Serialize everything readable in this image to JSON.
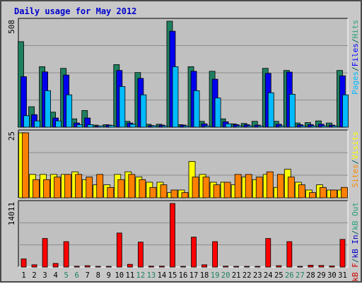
{
  "chart_data": {
    "title": "Daily usage for May 2012",
    "days": [
      "1",
      "2",
      "3",
      "4",
      "5",
      "6",
      "7",
      "8",
      "9",
      "10",
      "11",
      "12",
      "13",
      "14",
      "15",
      "16",
      "17",
      "18",
      "19",
      "20",
      "21",
      "22",
      "23",
      "24",
      "25",
      "26",
      "27",
      "28",
      "29",
      "30",
      "31"
    ],
    "weekend_days": [
      "5",
      "6",
      "12",
      "13",
      "19",
      "20",
      "26",
      "27"
    ],
    "panels": [
      {
        "type": "bar",
        "max_label": "508",
        "ymax": 508,
        "series_labels": [
          "Pages",
          "/",
          "Files",
          "/",
          "Hits"
        ],
        "series_label_colors": [
          "#00bbff",
          "#006060",
          "#0000ff",
          "#006060",
          "#2aa07a"
        ],
        "series": [
          {
            "name": "Hits",
            "color": "#1f8060",
            "values": [
              410,
              98,
              290,
              72,
              282,
              40,
              80,
              10,
              12,
              300,
              28,
              262,
              14,
              14,
              508,
              12,
              290,
              28,
              268,
              40,
              16,
              18,
              28,
              282,
              28,
              272,
              20,
              22,
              30,
              20,
              272
            ]
          },
          {
            "name": "Files",
            "color": "#0000ee",
            "values": [
              242,
              60,
              265,
              44,
              250,
              20,
              44,
              6,
              10,
              272,
              20,
              234,
              8,
              10,
              460,
              10,
              268,
              16,
              230,
              26,
              12,
              12,
              10,
              258,
              14,
              264,
              12,
              12,
              14,
              10,
              246
            ]
          },
          {
            "name": "Pages",
            "color": "#00bbff",
            "values": [
              55,
              30,
              175,
              30,
              155,
              12,
              12,
              6,
              8,
              195,
              14,
              155,
              6,
              6,
              290,
              6,
              175,
              6,
              140,
              16,
              6,
              6,
              6,
              165,
              6,
              158,
              6,
              6,
              6,
              6,
              155
            ]
          }
        ]
      },
      {
        "type": "bar",
        "max_label": "25",
        "ymax": 25,
        "series_labels": [
          "Sites",
          "/",
          "Visits"
        ],
        "series_label_colors": [
          "#ff8800",
          "#006060",
          "#ffff00"
        ],
        "series": [
          {
            "name": "Visits",
            "color": "#ffff00",
            "values": [
              25,
              9,
              9,
              9,
              9,
              10,
              7,
              5,
              5,
              9,
              10,
              8,
              6,
              6,
              2,
              3,
              14,
              9,
              6,
              6,
              5,
              8,
              7,
              9,
              4,
              11,
              6,
              3,
              5,
              3,
              3
            ]
          },
          {
            "name": "Sites",
            "color": "#ff8000",
            "values": [
              25,
              7,
              7,
              8,
              9,
              9,
              8,
              9,
              4,
              7,
              9,
              7,
              4,
              5,
              3,
              2,
              8,
              8,
              5,
              6,
              9,
              9,
              8,
              10,
              9,
              8,
              5,
              2,
              4,
              3,
              4
            ]
          }
        ]
      },
      {
        "type": "bar",
        "max_label": "14011",
        "ymax": 14011,
        "series_labels": [
          "kB F",
          "/",
          "kB In",
          "/",
          "kB Out"
        ],
        "series_label_colors": [
          "#cc0000",
          "#006060",
          "#0000cc",
          "#006060",
          "#2aa07a"
        ],
        "series": [
          {
            "name": "kB F",
            "color": "#ff0000",
            "values": [
              1800,
              500,
              6300,
              800,
              5600,
              180,
              300,
              150,
              150,
              7500,
              600,
              5500,
              200,
              200,
              14011,
              150,
              6600,
              500,
              5600,
              200,
              150,
              150,
              150,
              6300,
              300,
              5600,
              150,
              400,
              350,
              250,
              6100
            ]
          }
        ]
      }
    ]
  }
}
